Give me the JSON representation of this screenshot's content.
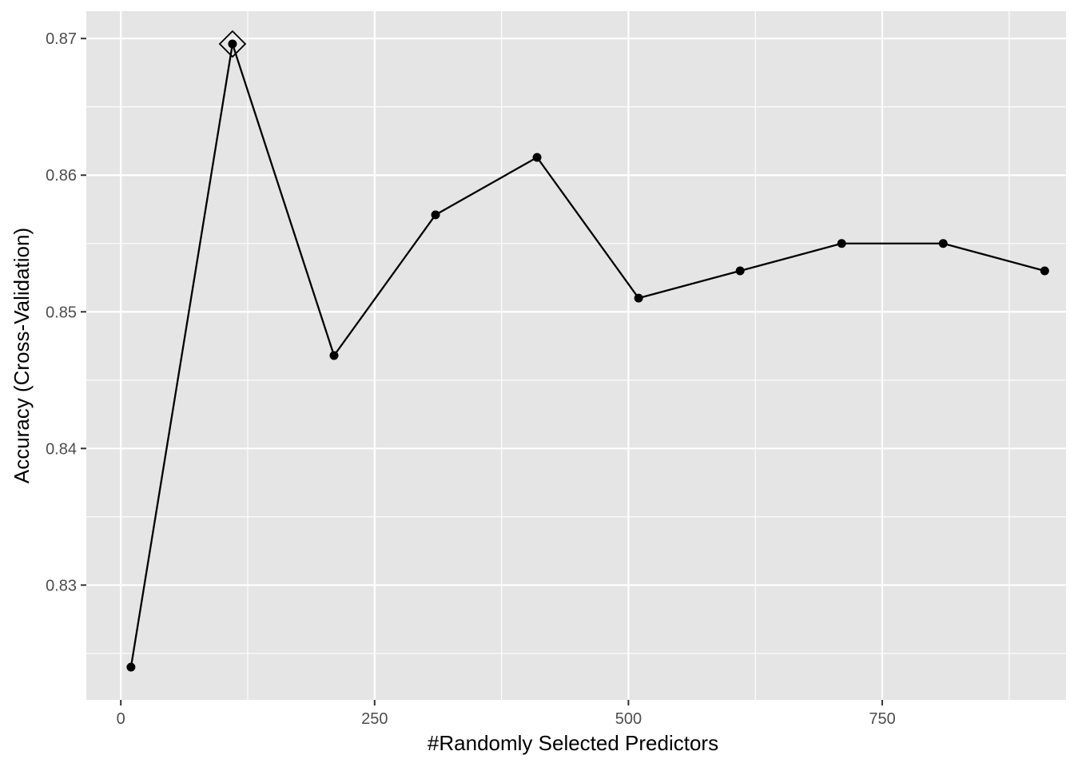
{
  "chart_data": {
    "type": "line",
    "title": "",
    "xlabel": "#Randomly Selected Predictors",
    "ylabel": "Accuracy (Cross-Validation)",
    "xlim": [
      -34,
      931
    ],
    "ylim": [
      0.8216,
      0.872
    ],
    "x_ticks": [
      0,
      250,
      500,
      750
    ],
    "x_tick_labels": [
      "0",
      "250",
      "500",
      "750"
    ],
    "x_minor_ticks": [
      125,
      375,
      625,
      875
    ],
    "y_ticks": [
      0.83,
      0.84,
      0.85,
      0.86,
      0.87
    ],
    "y_tick_labels": [
      "0.83",
      "0.84",
      "0.85",
      "0.86",
      "0.87"
    ],
    "y_minor_ticks": [
      0.825,
      0.835,
      0.845,
      0.855,
      0.865
    ],
    "grid": true,
    "legend": "none",
    "series": [
      {
        "x": [
          10,
          110,
          210,
          310,
          410,
          510,
          610,
          710,
          810,
          910
        ],
        "y": [
          0.824,
          0.8696,
          0.8468,
          0.8571,
          0.8613,
          0.851,
          0.853,
          0.855,
          0.855,
          0.853
        ]
      }
    ],
    "highlight": {
      "x": 110,
      "y": 0.8696,
      "marker": "diamond"
    },
    "colors": {
      "panel": "#e5e5e5",
      "grid": "#ffffff",
      "line": "#000000"
    }
  }
}
